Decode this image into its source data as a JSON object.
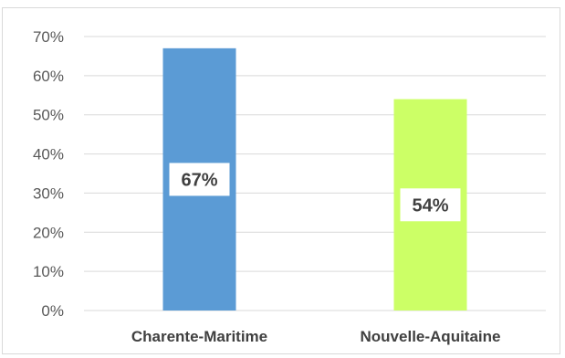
{
  "chart_data": {
    "type": "bar",
    "categories": [
      "Charente-Maritime",
      "Nouvelle-Aquitaine"
    ],
    "values": [
      67,
      54
    ],
    "data_labels": [
      "67%",
      "54%"
    ],
    "colors": [
      "#5b9bd5",
      "#ccff66"
    ],
    "ylim": [
      0,
      70
    ],
    "yticks": [
      0,
      10,
      20,
      30,
      40,
      50,
      60,
      70
    ],
    "ytick_labels": [
      "0%",
      "10%",
      "20%",
      "30%",
      "40%",
      "50%",
      "60%",
      "70%"
    ],
    "grid": true,
    "legend": "none",
    "title": "",
    "xlabel": "",
    "ylabel": ""
  }
}
